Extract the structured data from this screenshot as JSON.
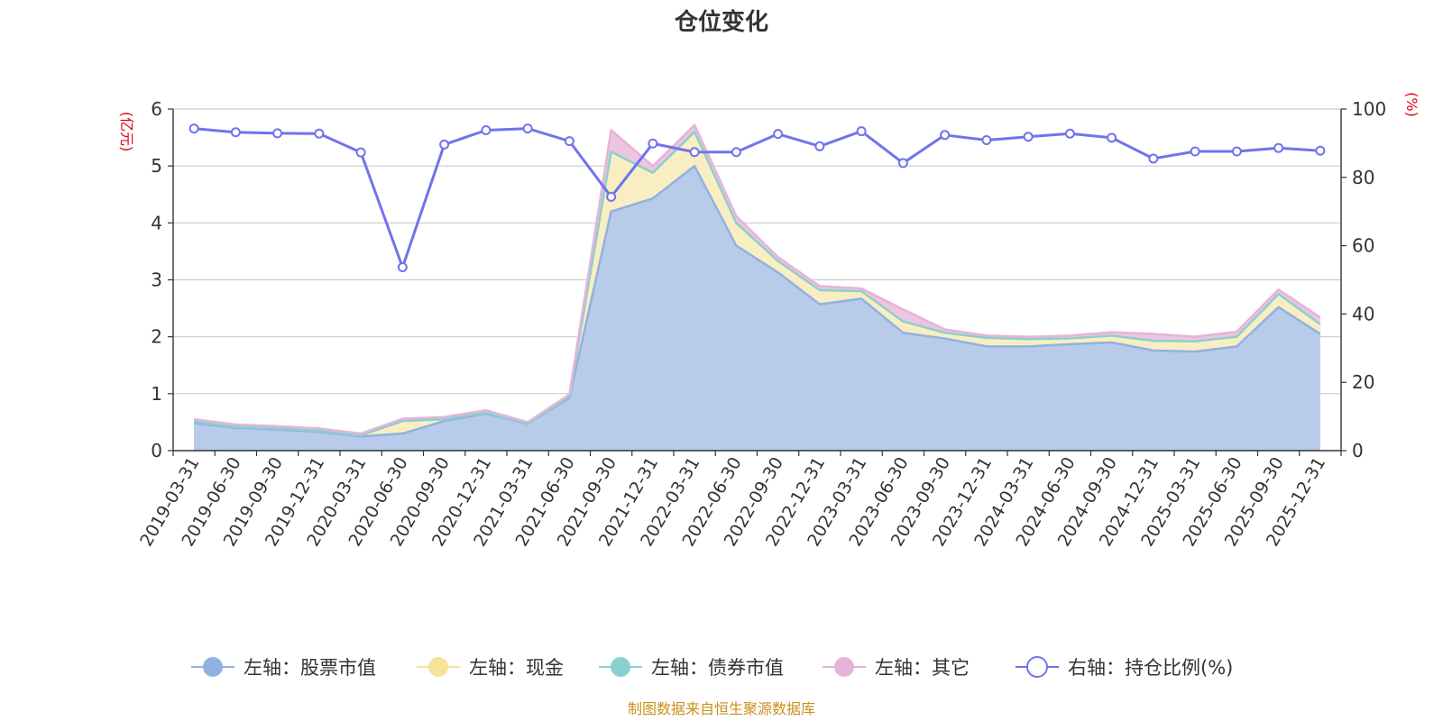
{
  "chart_data": {
    "type": "area",
    "title": "仓位变化",
    "left_axis_unit": "(亿元)",
    "right_axis_unit": "(%)",
    "ylim_left": [
      0,
      6
    ],
    "left_ticks": [
      0,
      1,
      2,
      3,
      4,
      5,
      6
    ],
    "ylim_right": [
      0,
      100
    ],
    "right_ticks": [
      0,
      20,
      40,
      60,
      80,
      100
    ],
    "categories": [
      "2019-03-31",
      "2019-06-30",
      "2019-09-30",
      "2019-12-31",
      "2020-03-31",
      "2020-06-30",
      "2020-09-30",
      "2020-12-31",
      "2021-03-31",
      "2021-06-30",
      "2021-09-30",
      "2021-12-31",
      "2022-03-31",
      "2022-06-30",
      "2022-09-30",
      "2022-12-31",
      "2023-03-31",
      "2023-06-30",
      "2023-09-30",
      "2023-12-31",
      "2024-03-31",
      "2024-06-30",
      "2024-09-30",
      "2024-12-31",
      "2025-03-31",
      "2025-06-30",
      "2025-09-30",
      "2025-12-31"
    ],
    "series": [
      {
        "name": "左轴：股票市值",
        "axis": "left",
        "kind": "area",
        "color": "#8fb2e0",
        "fill": "#b8cbea",
        "values": [
          0.48,
          0.4,
          0.37,
          0.33,
          0.25,
          0.3,
          0.52,
          0.65,
          0.47,
          0.93,
          4.2,
          4.43,
          5.0,
          3.6,
          3.13,
          2.57,
          2.67,
          2.07,
          1.97,
          1.83,
          1.83,
          1.87,
          1.9,
          1.76,
          1.74,
          1.83,
          2.52,
          2.05
        ]
      },
      {
        "name": "左轴：现金",
        "axis": "left",
        "kind": "area",
        "color": "#f7e29a",
        "fill": "#f9eec2",
        "values": [
          0.03,
          0.02,
          0.02,
          0.02,
          0.02,
          0.22,
          0.03,
          0.02,
          0.01,
          0.03,
          1.05,
          0.45,
          0.6,
          0.4,
          0.2,
          0.25,
          0.13,
          0.2,
          0.1,
          0.15,
          0.13,
          0.1,
          0.12,
          0.17,
          0.18,
          0.17,
          0.23,
          0.17
        ]
      },
      {
        "name": "左轴：债券市值",
        "axis": "left",
        "kind": "area",
        "color": "#8ad0d0",
        "fill": "#b5e3e3",
        "values": [
          0,
          0,
          0,
          0,
          0,
          0,
          0,
          0,
          0,
          0,
          0,
          0,
          0,
          0,
          0,
          0,
          0,
          0,
          0,
          0,
          0,
          0,
          0,
          0,
          0,
          0,
          0,
          0
        ]
      },
      {
        "name": "左轴：其它",
        "axis": "left",
        "kind": "area",
        "color": "#e6b4d8",
        "fill": "#ecc5e0",
        "values": [
          0.04,
          0.04,
          0.04,
          0.04,
          0.03,
          0.04,
          0.04,
          0.04,
          0.02,
          0.03,
          0.38,
          0.12,
          0.12,
          0.12,
          0.07,
          0.07,
          0.05,
          0.21,
          0.06,
          0.04,
          0.04,
          0.05,
          0.06,
          0.12,
          0.08,
          0.09,
          0.08,
          0.12
        ]
      },
      {
        "name": "右轴：持仓比例(%)",
        "axis": "right",
        "kind": "line",
        "color": "#7173ec",
        "values": [
          94.3,
          93.2,
          92.9,
          92.8,
          87.3,
          53.7,
          89.6,
          93.8,
          94.3,
          90.6,
          74.3,
          89.9,
          87.4,
          87.4,
          92.7,
          89.1,
          93.5,
          84.2,
          92.4,
          90.9,
          91.9,
          92.8,
          91.6,
          85.5,
          87.6,
          87.6,
          88.6,
          87.8
        ]
      }
    ],
    "source_note": "制图数据来自恒生聚源数据库"
  }
}
